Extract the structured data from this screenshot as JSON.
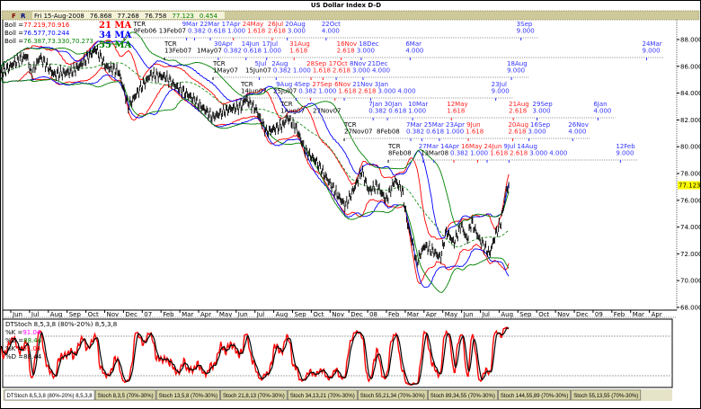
{
  "title": "US Dollar Index  D-D",
  "header": {
    "flags": [
      "F",
      "R"
    ],
    "date": "Fri 15-Aug-2008",
    "open": "76.868",
    "high": "77.268",
    "low": "76.758",
    "close": "77.123",
    "change": "0.454"
  },
  "legend": {
    "boll": [
      {
        "label": "Boll =",
        "value": "77.219,70.916",
        "color": "#ff0000"
      },
      {
        "label": "Boll =",
        "value": "76.577,70.244",
        "color": "#0000ff"
      },
      {
        "label": "Boll =",
        "value": "76.387,73.330,70.273",
        "color": "#008000"
      }
    ],
    "ma": [
      {
        "label": "21 MA",
        "color": "#ff0000"
      },
      {
        "label": "34 MA",
        "color": "#0000ff"
      },
      {
        "label": "55 MA",
        "color": "#008000"
      }
    ]
  },
  "last_price_tag": "77.123",
  "tcr_rows": [
    {
      "tcr": "TCR",
      "anchor": "9Feb06",
      "next": "13Feb07",
      "markers": [
        {
          "date": "2007-03-09",
          "label": "9Mar",
          "ratio": "0.382",
          "color": "#3333ff"
        },
        {
          "date": "2007-03-22",
          "label": "22Mar",
          "ratio": "0.618",
          "color": "#3333ff"
        },
        {
          "date": "2007-04-17",
          "label": "17Apr",
          "ratio": "1.000",
          "color": "#3333ff"
        },
        {
          "date": "2007-05-24",
          "label": "24May",
          "ratio": "1.618",
          "color": "#ff2222"
        },
        {
          "date": "2007-07-26",
          "label": "26Jul",
          "ratio": "2.618",
          "color": "#ff2222"
        },
        {
          "date": "2007-08-20",
          "label": "20Aug",
          "ratio": "3.000",
          "color": "#3333ff"
        },
        {
          "date": "2007-10-22",
          "label": "22Oct",
          "ratio": "4.000",
          "color": "#3333ff"
        },
        {
          "date": "2008-09-03",
          "label": "3Sep",
          "ratio": "9.000",
          "color": "#3333ff"
        }
      ]
    },
    {
      "tcr": "TCR",
      "anchor": "13Feb07",
      "next": "1May07",
      "markers": [
        {
          "date": "2007-04-30",
          "label": "30Apr",
          "ratio": "0.382",
          "color": "#3333ff"
        },
        {
          "date": "2007-06-14",
          "label": "14Jun",
          "ratio": "0.618",
          "color": "#3333ff"
        },
        {
          "date": "2007-07-17",
          "label": "17Jul",
          "ratio": "1.000",
          "color": "#3333ff"
        },
        {
          "date": "2007-08-31",
          "label": "31Aug",
          "ratio": "1.618",
          "color": "#ff2222"
        },
        {
          "date": "2007-11-16",
          "label": "16Nov",
          "ratio": "2.618",
          "color": "#ff2222"
        },
        {
          "date": "2007-12-18",
          "label": "18Dec",
          "ratio": "3.000",
          "color": "#3333ff"
        },
        {
          "date": "2008-03-06",
          "label": "6Mar",
          "ratio": "4.000",
          "color": "#3333ff"
        },
        {
          "date": "2009-03-24",
          "label": "24Mar",
          "ratio": "9.000",
          "color": "#3333ff"
        }
      ]
    },
    {
      "tcr": "TCR",
      "anchor": "1May07",
      "next": "15Jun07",
      "markers": [
        {
          "date": "2007-07-05",
          "label": "5Jul",
          "ratio": "0.382",
          "color": "#3333ff"
        },
        {
          "date": "2007-08-02",
          "label": "2Aug",
          "ratio": "1.000",
          "color": "#3333ff"
        },
        {
          "date": "2007-09-28",
          "label": "28Sep",
          "ratio": "1.618",
          "color": "#ff2222"
        },
        {
          "date": "2007-10-17",
          "label": "17Oct",
          "ratio": "2.618",
          "color": "#ff2222"
        },
        {
          "date": "2007-11-08",
          "label": "8Nov",
          "ratio": "3.000",
          "color": "#3333ff"
        },
        {
          "date": "2007-12-21",
          "label": "21Dec",
          "ratio": "4.000",
          "color": "#3333ff"
        },
        {
          "date": "2008-08-18",
          "label": "18Aug",
          "ratio": "9.000",
          "color": "#3333ff"
        }
      ]
    },
    {
      "tcr": "TCR",
      "anchor": "14Jun07",
      "next": "25Jul07",
      "markers": [
        {
          "date": "2007-08-09",
          "label": "9Aug",
          "ratio": "0.382",
          "color": "#3333ff"
        },
        {
          "date": "2007-09-04",
          "label": "4Sep",
          "ratio": "1.000",
          "color": "#3333ff"
        },
        {
          "date": "2007-09-27",
          "label": "27Sep",
          "ratio": "1.618",
          "color": "#ff2222"
        },
        {
          "date": "2007-11-06",
          "label": "6Nov",
          "ratio": "2.618",
          "color": "#ff2222"
        },
        {
          "date": "2007-11-21",
          "label": "21Nov",
          "ratio": "3.000",
          "color": "#3333ff"
        },
        {
          "date": "2008-01-03",
          "label": "3Jan",
          "ratio": "4.000",
          "color": "#3333ff"
        },
        {
          "date": "2008-07-23",
          "label": "23Jul",
          "ratio": "9.000",
          "color": "#3333ff"
        }
      ]
    },
    {
      "tcr": "TCR",
      "anchor": "1Aug07",
      "next": "27Nov07",
      "markers": [
        {
          "date": "2008-01-07",
          "label": "7Jan",
          "ratio": "0.382",
          "color": "#3333ff"
        },
        {
          "date": "2008-01-30",
          "label": "30Jan",
          "ratio": "0.618",
          "color": "#3333ff"
        },
        {
          "date": "2008-03-10",
          "label": "10Mar",
          "ratio": "1.000",
          "color": "#3333ff"
        },
        {
          "date": "2008-05-12",
          "label": "12May",
          "ratio": "1.618",
          "color": "#ff2222"
        },
        {
          "date": "2008-08-21",
          "label": "21Aug",
          "ratio": "2.618",
          "color": "#ff2222"
        },
        {
          "date": "2008-09-29",
          "label": "29Sep",
          "ratio": "3.000",
          "color": "#3333ff"
        },
        {
          "date": "2009-01-06",
          "label": "6Jan",
          "ratio": "4.000",
          "color": "#3333ff"
        }
      ]
    },
    {
      "tcr": "TCR",
      "anchor": "27Nov07",
      "next": "8Feb08",
      "markers": [
        {
          "date": "2008-03-07",
          "label": "7Mar",
          "ratio": "0.382",
          "color": "#3333ff"
        },
        {
          "date": "2008-03-25",
          "label": "25Mar",
          "ratio": "0.618",
          "color": "#3333ff"
        },
        {
          "date": "2008-04-23",
          "label": "23Apr",
          "ratio": "1.000",
          "color": "#3333ff"
        },
        {
          "date": "2008-06-09",
          "label": "9Jun",
          "ratio": "1.618",
          "color": "#ff2222"
        },
        {
          "date": "2008-08-20",
          "label": "20Aug",
          "ratio": "2.618",
          "color": "#ff2222"
        },
        {
          "date": "2008-09-16",
          "label": "16Sep",
          "ratio": "3.000",
          "color": "#3333ff"
        },
        {
          "date": "2008-11-26",
          "label": "26Nov",
          "ratio": "4.000",
          "color": "#3333ff"
        }
      ]
    },
    {
      "tcr": "TCR",
      "anchor": "8Feb08",
      "next": "13Mar08",
      "markers": [
        {
          "date": "2008-03-27",
          "label": "27Mar",
          "ratio": "0.382",
          "color": "#3333ff"
        },
        {
          "date": "2008-04-14",
          "label": "14Apr",
          "ratio": "1.000",
          "color": "#3333ff"
        },
        {
          "date": "2008-05-16",
          "label": "16May",
          "ratio": "1.618",
          "color": "#ff2222"
        },
        {
          "date": "2008-06-24",
          "label": "24Jun",
          "ratio": "2.618",
          "color": "#ff2222"
        },
        {
          "date": "2008-07-09",
          "label": "9Jul",
          "ratio": "3.000",
          "color": "#3333ff"
        },
        {
          "date": "2008-08-14",
          "label": "14Aug",
          "ratio": "4.000",
          "color": "#3333ff"
        },
        {
          "date": "2009-02-12",
          "label": "12Feb",
          "ratio": "9.000",
          "color": "#3333ff"
        }
      ]
    }
  ],
  "chart_data": [
    {
      "type": "line",
      "title": "US Dollar Index  D-D",
      "xlabel": "",
      "ylabel": "",
      "ylim": [
        68,
        89
      ],
      "xlim": [
        "2006-05-10",
        "2009-04-30"
      ],
      "grid": false,
      "x_tick_labels": [
        "Jun",
        "Jul",
        "Aug",
        "Sep",
        "Oct",
        "Nov",
        "Dec",
        "07",
        "Feb",
        "Mar",
        "Apr",
        "May",
        "Jun",
        "Jul",
        "Aug",
        "Sep",
        "Oct",
        "Nov",
        "Dec",
        "08",
        "Feb",
        "Mar",
        "Apr",
        "May",
        "Jun",
        "Jul",
        "Aug",
        "Sep",
        "Oct",
        "Nov",
        "Dec",
        "09",
        "Feb",
        "Mar",
        "Apr"
      ],
      "y_tick_labels": [
        "88.000",
        "86.000",
        "84.000",
        "82.000",
        "80.000",
        "78.000",
        "76.000",
        "74.000",
        "72.000",
        "70.000",
        "68.000"
      ],
      "series": [
        {
          "style": "ohlc-bars",
          "color": "#000000",
          "points": [
            [
              "2006-05-12",
              85.4
            ],
            [
              "2006-06-05",
              86.3
            ],
            [
              "2006-06-24",
              86.8
            ],
            [
              "2006-07-01",
              85.4
            ],
            [
              "2006-07-15",
              86.7
            ],
            [
              "2006-08-07",
              85.4
            ],
            [
              "2006-09-05",
              85.6
            ],
            [
              "2006-09-20",
              86.1
            ],
            [
              "2006-10-14",
              87.3
            ],
            [
              "2006-10-30",
              86.0
            ],
            [
              "2006-11-21",
              85.6
            ],
            [
              "2006-12-06",
              83.0
            ],
            [
              "2006-12-23",
              84.2
            ],
            [
              "2007-01-12",
              85.4
            ],
            [
              "2007-02-06",
              85.2
            ],
            [
              "2007-02-20",
              84.6
            ],
            [
              "2007-03-19",
              83.6
            ],
            [
              "2007-04-21",
              82.2
            ],
            [
              "2007-05-16",
              82.8
            ],
            [
              "2007-06-08",
              83.0
            ],
            [
              "2007-06-12",
              83.6
            ],
            [
              "2007-06-30",
              82.8
            ],
            [
              "2007-07-17",
              81.1
            ],
            [
              "2007-08-13",
              81.6
            ],
            [
              "2007-08-20",
              82.2
            ],
            [
              "2007-09-04",
              81.4
            ],
            [
              "2007-09-19",
              79.7
            ],
            [
              "2007-10-06",
              78.9
            ],
            [
              "2007-10-25",
              77.5
            ],
            [
              "2007-11-13",
              76.2
            ],
            [
              "2007-11-23",
              75.6
            ],
            [
              "2007-12-07",
              76.9
            ],
            [
              "2007-12-19",
              78.2
            ],
            [
              "2007-12-30",
              76.7
            ],
            [
              "2008-01-13",
              77.1
            ],
            [
              "2008-01-28",
              76.0
            ],
            [
              "2008-02-12",
              77.5
            ],
            [
              "2008-02-24",
              76.7
            ],
            [
              "2008-03-01",
              74.4
            ],
            [
              "2008-03-11",
              72.6
            ],
            [
              "2008-03-16",
              71.3
            ],
            [
              "2008-03-29",
              72.6
            ],
            [
              "2008-04-13",
              72.2
            ],
            [
              "2008-04-25",
              71.7
            ],
            [
              "2008-05-04",
              73.7
            ],
            [
              "2008-05-16",
              72.8
            ],
            [
              "2008-05-28",
              74.2
            ],
            [
              "2008-06-07",
              73.0
            ],
            [
              "2008-06-14",
              74.4
            ],
            [
              "2008-06-28",
              73.0
            ],
            [
              "2008-07-13",
              72.0
            ],
            [
              "2008-07-23",
              73.5
            ],
            [
              "2008-08-01",
              74.4
            ],
            [
              "2008-08-09",
              76.7
            ],
            [
              "2008-08-15",
              77.123
            ]
          ]
        },
        {
          "name": "21 MA",
          "style": "bollinger",
          "color": "#ff0000"
        },
        {
          "name": "34 MA",
          "style": "bollinger",
          "color": "#0000ff"
        },
        {
          "name": "55 MA",
          "style": "bollinger",
          "color": "#008000"
        }
      ]
    },
    {
      "type": "line",
      "title": "DTStoch 8,5,3,8 (80%-20%) 8,5,3,8",
      "ylim": [
        0,
        100
      ],
      "reference_lines": [
        80,
        20
      ],
      "series": [
        {
          "name": "%K",
          "value": "91.04",
          "color": "#ff0000"
        },
        {
          "name": "%D",
          "value": "88.44",
          "color": "#000000"
        }
      ],
      "readouts": [
        {
          "label": "%K =",
          "value": "91.04",
          "color": "#ff00ff"
        },
        {
          "label": "%D =",
          "value": "88.44",
          "color": "#008000"
        },
        {
          "label": "%K =",
          "value": "91.04",
          "color": "#ff0000"
        },
        {
          "label": "%D =",
          "value": "88.44",
          "color": "#000000"
        }
      ]
    }
  ],
  "tabs": [
    {
      "label": "DTStoch 8,5,3,8 (80%-20%) 8,5,3,8",
      "active": true
    },
    {
      "label": "Stoch 8,3,5 (70%-30%)"
    },
    {
      "label": "Stoch 13,5,8 (70%-30%)"
    },
    {
      "label": "Stoch 21,8,13 (70%-30%)"
    },
    {
      "label": "Stoch 34,13,21 (70%-30%)"
    },
    {
      "label": "Stoch 55,21,34 (70%-30%)"
    },
    {
      "label": "Stoch 89,34,55 (70%-30%)"
    },
    {
      "label": "Stoch 144,55,89 (70%-30%)"
    },
    {
      "label": "Stoch 55,13,55 (70%-30%)"
    }
  ]
}
